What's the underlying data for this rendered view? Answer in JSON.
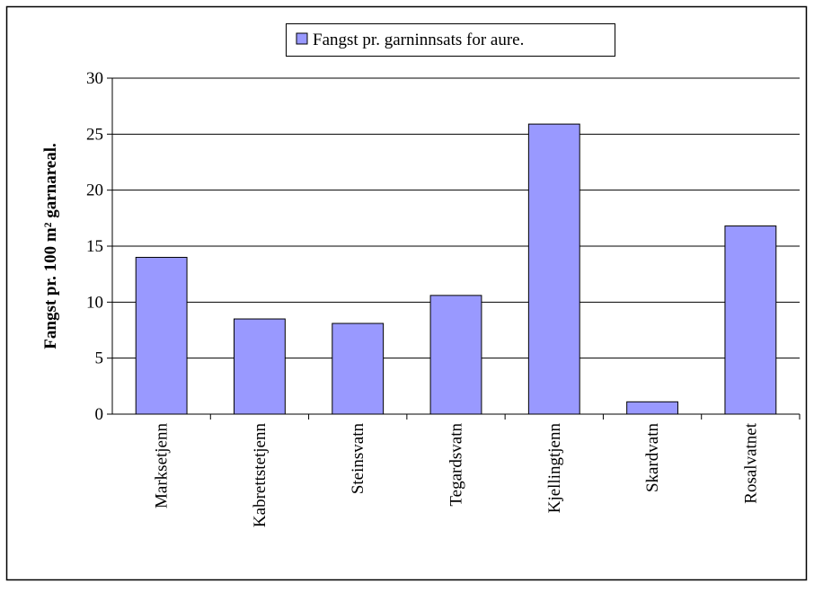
{
  "chart_data": {
    "type": "bar",
    "ylabel": "Fangst pr. 100 m² garnareal.",
    "categories": [
      "Marksetjenn",
      "Kabrettstetjenn",
      "Steinsvatn",
      "Tegardsvatn",
      "Kjellingtjenn",
      "Skardvatn",
      "Rosalvatnet"
    ],
    "series": [
      {
        "name": "Fangst pr. garninnsats for aure.",
        "color": "#9999ff",
        "values": [
          14,
          8.5,
          8.1,
          10.6,
          25.9,
          1.1,
          16.8
        ]
      }
    ],
    "ylim": [
      0,
      30
    ],
    "yticks": [
      0,
      5,
      10,
      15,
      20,
      25,
      30
    ],
    "grid": true,
    "legend": "top"
  }
}
